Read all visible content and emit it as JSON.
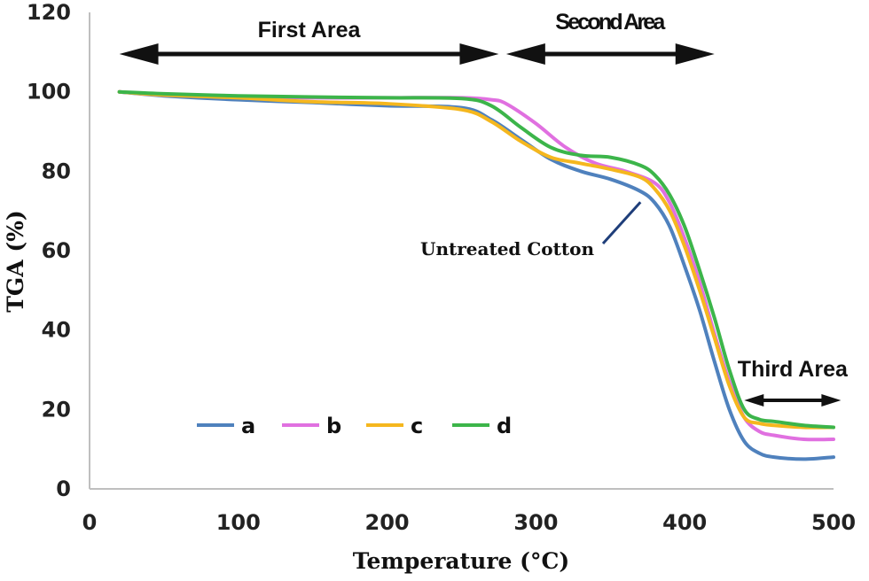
{
  "chart_data": {
    "type": "line",
    "title": "",
    "xlabel": "Temperature (°C)",
    "ylabel": "TGA (%)",
    "xlim": [
      0,
      500
    ],
    "ylim": [
      0,
      120
    ],
    "xticks": [
      0,
      100,
      200,
      300,
      400,
      500
    ],
    "yticks": [
      0,
      20,
      40,
      60,
      80,
      100,
      120
    ],
    "grid": false,
    "legend_position": "lower-left",
    "regions": [
      {
        "label": "First  Area",
        "x_start": 20,
        "x_end": 275
      },
      {
        "label": "Second Area",
        "x_start": 280,
        "x_end": 420
      },
      {
        "label": "Third Area",
        "x_start": 440,
        "x_end": 505
      }
    ],
    "annotations": [
      {
        "text": "Untreated Cotton",
        "series": "a",
        "x": 375,
        "y": 74
      }
    ],
    "series": [
      {
        "name": "a",
        "color": "#4f81bd",
        "x": [
          20,
          50,
          100,
          150,
          200,
          250,
          270,
          290,
          310,
          330,
          350,
          370,
          380,
          390,
          400,
          410,
          420,
          430,
          440,
          450,
          460,
          480,
          500
        ],
        "y": [
          100,
          99,
          98,
          97.3,
          96.5,
          96,
          93,
          88,
          83,
          80,
          78,
          75,
          72,
          66,
          56,
          45,
          32,
          20,
          12,
          9,
          8,
          7.5,
          8
        ]
      },
      {
        "name": "b",
        "color": "#e070e0",
        "x": [
          20,
          50,
          100,
          150,
          200,
          250,
          270,
          280,
          300,
          320,
          340,
          360,
          380,
          390,
          400,
          410,
          420,
          430,
          440,
          450,
          460,
          480,
          500
        ],
        "y": [
          100,
          99.2,
          98.8,
          98.5,
          98.5,
          98.5,
          98,
          97,
          92,
          86,
          82,
          80,
          77,
          72,
          63,
          52,
          39,
          27,
          18,
          14.5,
          13.5,
          12.5,
          12.5
        ]
      },
      {
        "name": "c",
        "color": "#f5b71e",
        "x": [
          20,
          50,
          100,
          150,
          200,
          250,
          270,
          290,
          310,
          330,
          350,
          370,
          380,
          390,
          400,
          410,
          420,
          430,
          440,
          450,
          460,
          480,
          500
        ],
        "y": [
          100,
          99.2,
          98.5,
          97.5,
          97,
          95.5,
          92.5,
          87.5,
          83.5,
          82,
          80.5,
          78.5,
          75.5,
          70,
          61,
          50,
          38,
          26,
          18,
          16.5,
          16,
          15.5,
          15.5
        ]
      },
      {
        "name": "d",
        "color": "#3cb54a",
        "x": [
          20,
          50,
          100,
          150,
          200,
          250,
          270,
          290,
          310,
          330,
          350,
          370,
          380,
          390,
          400,
          410,
          420,
          430,
          440,
          450,
          460,
          480,
          500
        ],
        "y": [
          100,
          99.5,
          99,
          98.7,
          98.5,
          98.3,
          96.5,
          91,
          86,
          84,
          83.5,
          81.5,
          79,
          74,
          66,
          55,
          43,
          30,
          20,
          17.5,
          17,
          16,
          15.5
        ]
      }
    ]
  }
}
